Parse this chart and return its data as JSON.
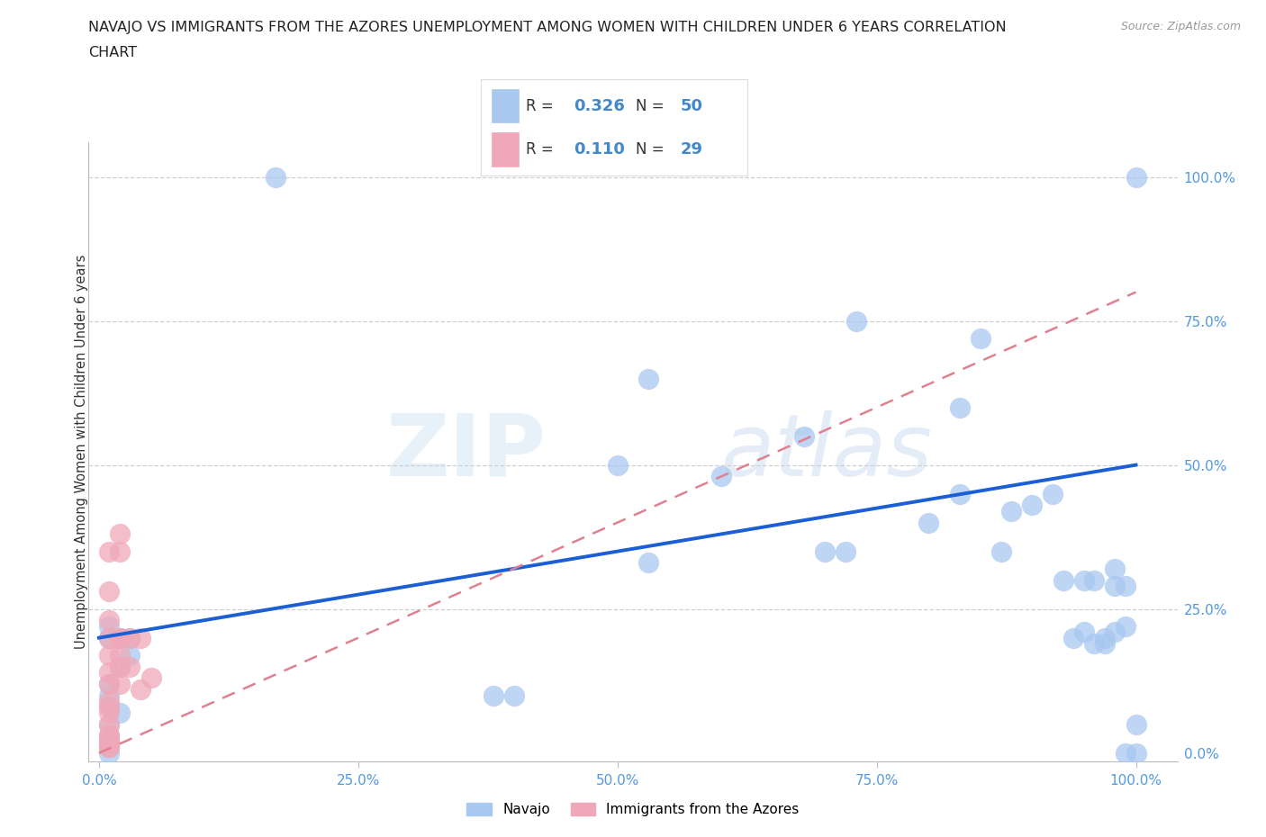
{
  "title_line1": "NAVAJO VS IMMIGRANTS FROM THE AZORES UNEMPLOYMENT AMONG WOMEN WITH CHILDREN UNDER 6 YEARS CORRELATION",
  "title_line2": "CHART",
  "source": "Source: ZipAtlas.com",
  "ylabel": "Unemployment Among Women with Children Under 6 years",
  "navajo_R": 0.326,
  "navajo_N": 50,
  "azores_R": 0.11,
  "azores_N": 29,
  "navajo_color": "#a8c8f0",
  "azores_color": "#f0a8b8",
  "navajo_line_color": "#1a5fd4",
  "azores_line_color": "#e08090",
  "background_color": "#ffffff",
  "grid_color": "#cccccc",
  "navajo_x": [
    0.17,
    0.01,
    0.01,
    0.02,
    0.03,
    0.03,
    0.02,
    0.01,
    0.01,
    0.01,
    0.02,
    0.01,
    0.01,
    0.01,
    0.01,
    0.38,
    0.4,
    0.5,
    0.53,
    0.6,
    0.68,
    0.73,
    0.8,
    0.83,
    0.87,
    0.88,
    0.9,
    0.92,
    0.94,
    0.95,
    0.96,
    0.97,
    0.98,
    0.98,
    0.99,
    0.99,
    1.0,
    1.0,
    1.0,
    0.85,
    0.83,
    0.93,
    0.95,
    0.96,
    0.97,
    0.98,
    0.99,
    0.7,
    0.72,
    0.53
  ],
  "navajo_y": [
    1.0,
    0.22,
    0.2,
    0.2,
    0.2,
    0.17,
    0.15,
    0.12,
    0.1,
    0.08,
    0.07,
    0.05,
    0.02,
    0.01,
    0.0,
    0.1,
    0.1,
    0.5,
    0.65,
    0.48,
    0.55,
    0.75,
    0.4,
    0.45,
    0.35,
    0.42,
    0.43,
    0.45,
    0.2,
    0.21,
    0.19,
    0.2,
    0.32,
    0.29,
    0.29,
    0.22,
    0.0,
    0.05,
    1.0,
    0.72,
    0.6,
    0.3,
    0.3,
    0.3,
    0.19,
    0.21,
    0.0,
    0.35,
    0.35,
    0.33
  ],
  "azores_x": [
    0.01,
    0.01,
    0.01,
    0.01,
    0.01,
    0.01,
    0.01,
    0.01,
    0.01,
    0.01,
    0.01,
    0.02,
    0.02,
    0.02,
    0.03,
    0.04,
    0.04,
    0.05,
    0.03,
    0.02,
    0.02,
    0.02,
    0.02,
    0.01,
    0.01,
    0.01,
    0.01,
    0.01,
    0.01
  ],
  "azores_y": [
    0.35,
    0.28,
    0.23,
    0.2,
    0.17,
    0.14,
    0.12,
    0.09,
    0.07,
    0.05,
    0.03,
    0.38,
    0.35,
    0.2,
    0.15,
    0.2,
    0.11,
    0.13,
    0.2,
    0.17,
    0.15,
    0.12,
    0.2,
    0.02,
    0.02,
    0.01,
    0.01,
    0.03,
    0.08
  ],
  "x_ticks": [
    0.0,
    0.25,
    0.5,
    0.75,
    1.0
  ],
  "x_tick_labels": [
    "0.0%",
    "25.0%",
    "50.0%",
    "75.0%",
    "100.0%"
  ],
  "y_ticks": [
    0.0,
    0.25,
    0.5,
    0.75,
    1.0
  ],
  "y_tick_labels_right": [
    "0.0%",
    "25.0%",
    "50.0%",
    "75.0%",
    "100.0%"
  ],
  "watermark_zip": "ZIP",
  "watermark_atlas": "atlas",
  "legend_navajo": "Navajo",
  "legend_azores": "Immigrants from the Azores",
  "navajo_trend_x0": 0.0,
  "navajo_trend_y0": 0.2,
  "navajo_trend_x1": 1.0,
  "navajo_trend_y1": 0.5,
  "azores_trend_x0": 0.0,
  "azores_trend_y0": 0.0,
  "azores_trend_x1": 1.0,
  "azores_trend_y1": 0.8
}
